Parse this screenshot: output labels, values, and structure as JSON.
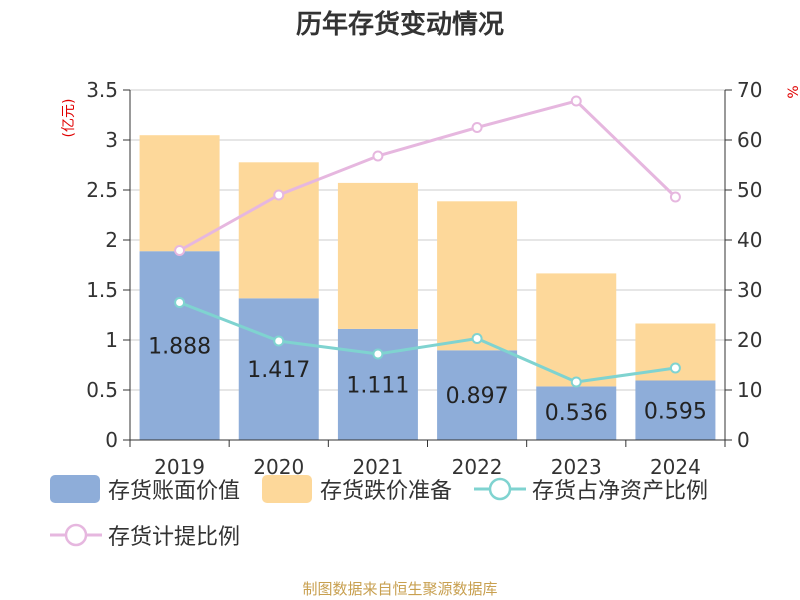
{
  "title": "历年存货变动情况",
  "source": "制图数据来自恒生聚源数据库",
  "chart_data": {
    "type": "bar",
    "stacked": true,
    "categories": [
      "2019",
      "2020",
      "2021",
      "2022",
      "2023",
      "2024"
    ],
    "y_left": {
      "unit": "(亿元)",
      "min": 0,
      "max": 3.5,
      "step": 0.5,
      "ticks": [
        "0",
        "0.5",
        "1",
        "1.5",
        "2",
        "2.5",
        "3",
        "3.5"
      ]
    },
    "y_right": {
      "unit": "%",
      "min": 0,
      "max": 70,
      "step": 10,
      "ticks": [
        "0",
        "10",
        "20",
        "30",
        "40",
        "50",
        "60",
        "70"
      ]
    },
    "grid": true,
    "legend_position": "bottom",
    "series": [
      {
        "name": "存货账面价值",
        "kind": "bar",
        "axis": "left",
        "color": "#8eadd9",
        "values": [
          1.888,
          1.417,
          1.111,
          0.897,
          0.536,
          0.595
        ],
        "labels": [
          "1.888",
          "1.417",
          "1.111",
          "0.897",
          "0.536",
          "0.595"
        ]
      },
      {
        "name": "存货跌价准备",
        "kind": "bar",
        "axis": "left",
        "color": "#fdd89a",
        "values": [
          1.16,
          1.36,
          1.46,
          1.49,
          1.13,
          0.57
        ]
      },
      {
        "name": "存货占净资产比例",
        "kind": "line",
        "axis": "right",
        "color": "#7fd3d0",
        "values": [
          27.5,
          19.8,
          17.2,
          20.3,
          11.6,
          14.4
        ]
      },
      {
        "name": "存货计提比例",
        "kind": "line",
        "axis": "right",
        "color": "#e6b7df",
        "values": [
          37.9,
          49.0,
          56.8,
          62.5,
          67.8,
          48.6
        ]
      }
    ]
  }
}
